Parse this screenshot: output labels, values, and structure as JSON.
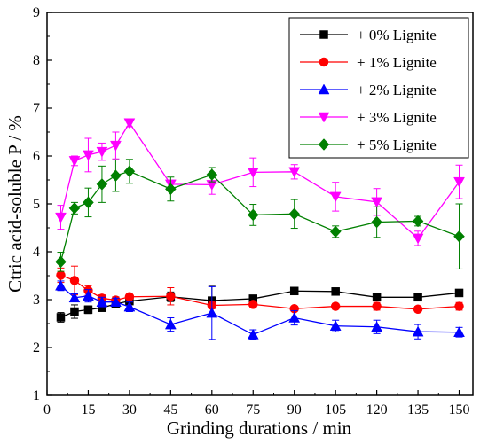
{
  "chart_data": {
    "type": "line",
    "xlabel": "Grinding durations / min",
    "ylabel": "Ctric acid-soluble P / %",
    "xlim": [
      0,
      155
    ],
    "ylim": [
      1,
      9
    ],
    "xticks": [
      0,
      15,
      30,
      45,
      60,
      75,
      90,
      105,
      120,
      135,
      150
    ],
    "yticks": [
      1,
      2,
      3,
      4,
      5,
      6,
      7,
      8,
      9
    ],
    "x": [
      5,
      10,
      15,
      20,
      25,
      30,
      45,
      60,
      75,
      90,
      105,
      120,
      135,
      150
    ],
    "grid": false,
    "legend_position": "top-right",
    "series": [
      {
        "name": "+ 0% Lignite",
        "color": "#000000",
        "marker": "square",
        "values": [
          2.63,
          2.75,
          2.79,
          2.83,
          2.91,
          2.97,
          3.06,
          2.98,
          3.02,
          3.18,
          3.17,
          3.05,
          3.05,
          3.14
        ],
        "errors": [
          0.1,
          0.14,
          0.08,
          0.07,
          0.07,
          0.07,
          0.1,
          0.3,
          0.04,
          0.05,
          0.05,
          0.04,
          0.04,
          0.05
        ]
      },
      {
        "name": "+ 1% Lignite",
        "color": "#ff0000",
        "marker": "circle",
        "values": [
          3.51,
          3.4,
          3.19,
          3.03,
          2.99,
          3.06,
          3.07,
          2.88,
          2.9,
          2.81,
          2.86,
          2.86,
          2.8,
          2.86
        ],
        "errors": [
          0.15,
          0.3,
          0.1,
          0.07,
          0.07,
          0.05,
          0.18,
          0.07,
          0.07,
          0.05,
          0.06,
          0.08,
          0.06,
          0.08
        ]
      },
      {
        "name": "+ 2% Lignite",
        "color": "#0000ff",
        "marker": "triangle-up",
        "values": [
          3.29,
          3.04,
          3.08,
          2.95,
          2.95,
          2.85,
          2.48,
          2.72,
          2.27,
          2.62,
          2.45,
          2.43,
          2.33,
          2.32
        ],
        "errors": [
          0.1,
          0.08,
          0.13,
          0.1,
          0.08,
          0.1,
          0.14,
          0.55,
          0.1,
          0.15,
          0.12,
          0.14,
          0.15,
          0.1
        ]
      },
      {
        "name": "+ 3% Lignite",
        "color": "#ff00ff",
        "marker": "triangle-down",
        "values": [
          4.72,
          5.9,
          6.02,
          6.09,
          6.22,
          6.69,
          5.41,
          5.4,
          5.66,
          5.67,
          5.15,
          5.04,
          4.28,
          5.46
        ],
        "errors": [
          0.25,
          0.1,
          0.35,
          0.18,
          0.28,
          0.08,
          0.08,
          0.2,
          0.3,
          0.15,
          0.3,
          0.28,
          0.15,
          0.35
        ]
      },
      {
        "name": "+ 5% Lignite",
        "color": "#008000",
        "marker": "diamond",
        "values": [
          3.79,
          4.91,
          5.03,
          5.41,
          5.59,
          5.68,
          5.31,
          5.61,
          4.77,
          4.79,
          4.42,
          4.62,
          4.64,
          4.32
        ],
        "errors": [
          0.2,
          0.12,
          0.3,
          0.38,
          0.33,
          0.25,
          0.25,
          0.15,
          0.22,
          0.3,
          0.12,
          0.32,
          0.1,
          0.68
        ]
      }
    ]
  }
}
